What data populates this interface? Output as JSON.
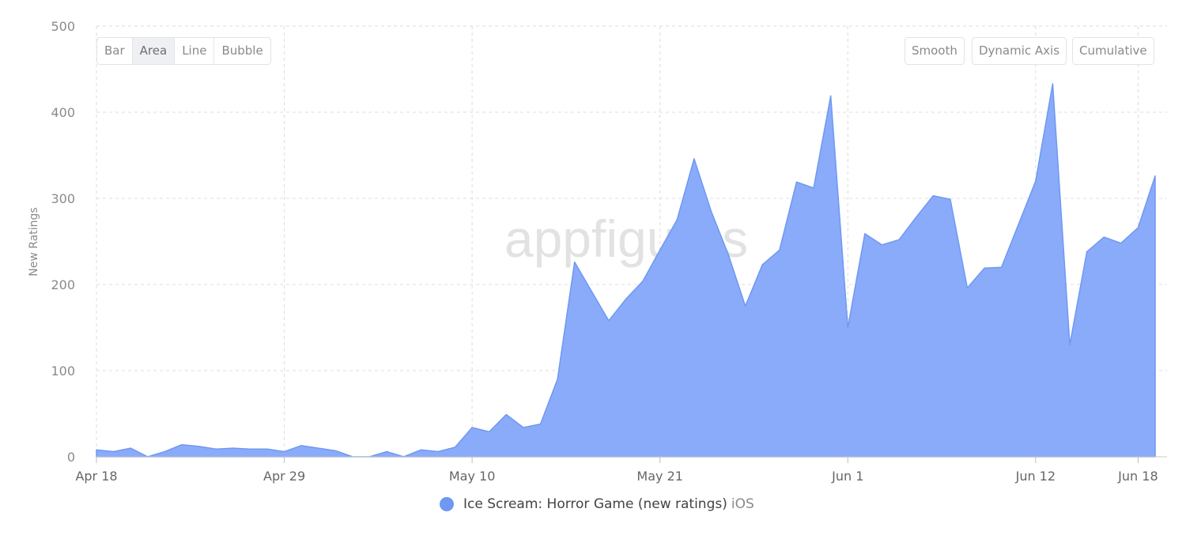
{
  "controls": {
    "chart_types": [
      {
        "label": "Bar",
        "active": false
      },
      {
        "label": "Area",
        "active": true
      },
      {
        "label": "Line",
        "active": false
      },
      {
        "label": "Bubble",
        "active": false
      }
    ],
    "options": [
      "Smooth",
      "Dynamic Axis",
      "Cumulative"
    ]
  },
  "watermark": "appfigures",
  "legend": {
    "label": "Ice Scream: Horror Game (new ratings)",
    "platform": "iOS"
  },
  "colors": {
    "area_fill": "#8aabfa",
    "area_stroke": "#6f98f2",
    "legend_dot": "#6f98f2",
    "grid": "#dcdcdc"
  },
  "chart_data": {
    "type": "area",
    "title": "",
    "ylabel": "New Ratings",
    "xlabel": "",
    "ylim": [
      0,
      500
    ],
    "yticks": [
      0,
      100,
      200,
      300,
      400,
      500
    ],
    "x_tick_labels": [
      {
        "label": "Apr 18",
        "index": 0
      },
      {
        "label": "Apr 29",
        "index": 11
      },
      {
        "label": "May 10",
        "index": 22
      },
      {
        "label": "May 21",
        "index": 33
      },
      {
        "label": "Jun 1",
        "index": 44
      },
      {
        "label": "Jun 12",
        "index": 55
      },
      {
        "label": "Jun 18",
        "index": 61
      }
    ],
    "series": [
      {
        "name": "Ice Scream: Horror Game (new ratings)",
        "values": [
          8,
          6,
          10,
          0,
          6,
          14,
          12,
          9,
          10,
          9,
          9,
          6,
          13,
          10,
          7,
          0,
          0,
          6,
          0,
          8,
          6,
          11,
          34,
          29,
          49,
          34,
          38,
          90,
          226,
          192,
          158,
          183,
          204,
          240,
          275,
          346,
          285,
          235,
          175,
          223,
          240,
          319,
          312,
          419,
          150,
          259,
          246,
          252,
          278,
          303,
          299,
          196,
          219,
          220,
          270,
          320,
          433,
          130,
          238,
          255,
          248,
          266,
          326
        ]
      }
    ]
  }
}
